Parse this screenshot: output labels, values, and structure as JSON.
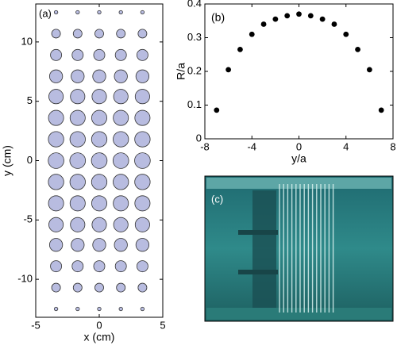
{
  "chart_data": [
    {
      "type": "circles",
      "label": "(a)",
      "xlabel": "x (cm)",
      "ylabel": "y (cm)",
      "columns": [
        -3.4,
        -1.7,
        0,
        1.7,
        3.4
      ],
      "y": [
        -12.5,
        -10.7,
        -8.9,
        -7.1,
        -5.4,
        -3.6,
        -1.8,
        0,
        1.8,
        3.6,
        5.4,
        7.1,
        8.9,
        10.7,
        12.5
      ],
      "sizes": [
        0.15,
        0.37,
        0.47,
        0.55,
        0.61,
        0.64,
        0.65,
        0.66,
        0.65,
        0.64,
        0.61,
        0.55,
        0.47,
        0.37,
        0.15
      ],
      "color": "#b8bce0",
      "xlim": [
        -5,
        5
      ],
      "xticks": [
        -5,
        0,
        5
      ],
      "ylim": [
        -13.2,
        13.2
      ],
      "yticks": [
        -10,
        -5,
        0,
        5,
        10
      ]
    },
    {
      "type": "scatter",
      "label": "(b)",
      "xlabel": "y/a",
      "ylabel": "R/a",
      "x": [
        -7,
        -6,
        -5,
        -4,
        -3,
        -2,
        -1,
        0,
        1,
        2,
        3,
        4,
        5,
        6,
        7
      ],
      "values": [
        0.085,
        0.205,
        0.265,
        0.31,
        0.34,
        0.355,
        0.365,
        0.37,
        0.365,
        0.355,
        0.34,
        0.31,
        0.265,
        0.205,
        0.085
      ],
      "color": "#000000",
      "xlim": [
        -8,
        8
      ],
      "xticks": [
        -8,
        -4,
        0,
        4,
        8
      ],
      "ylim": [
        0,
        0.4
      ],
      "yticks": [
        0,
        0.1,
        0.2,
        0.3,
        0.4
      ]
    },
    {
      "type": "photo",
      "label": "(c)"
    }
  ]
}
